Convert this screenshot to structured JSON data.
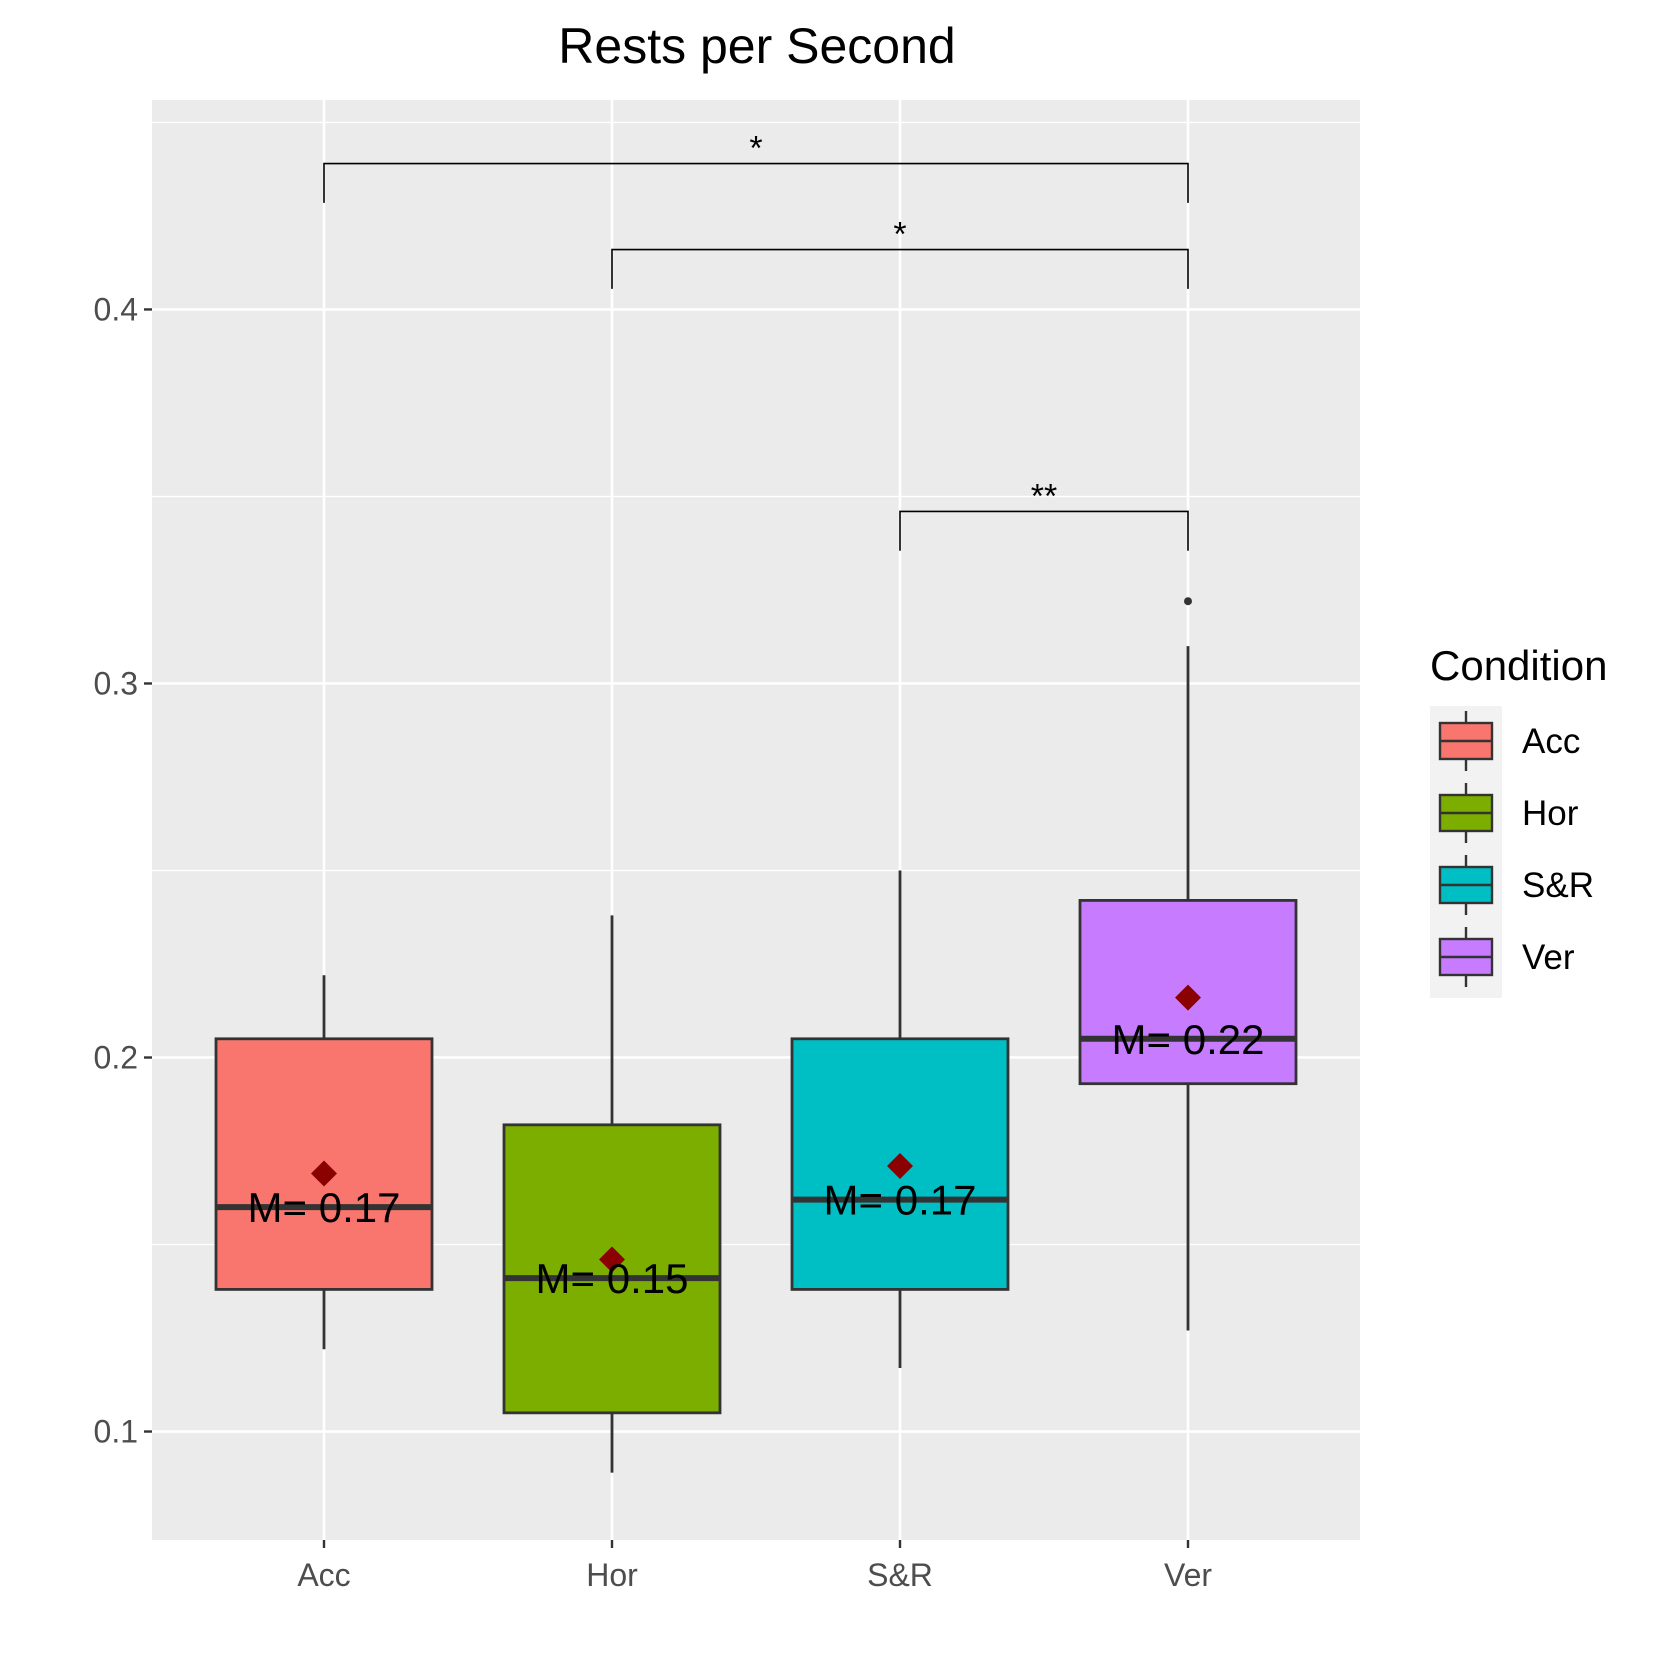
{
  "chart_data": {
    "type": "box",
    "title": "Rests per Second",
    "xlabel": "",
    "ylabel": "",
    "ylim": [
      0.071,
      0.456
    ],
    "y_ticks": [
      0.1,
      0.2,
      0.3,
      0.4
    ],
    "y_tick_labels": [
      "0.1",
      "0.2",
      "0.3",
      "0.4"
    ],
    "categories": [
      "Acc",
      "Hor",
      "S&R",
      "Ver"
    ],
    "boxes": [
      {
        "name": "Acc",
        "color": "#F8766D",
        "whisker_low": 0.122,
        "q1": 0.138,
        "median": 0.16,
        "q3": 0.205,
        "whisker_high": 0.222,
        "mean": 0.169,
        "mean_label": "M= 0.17",
        "outliers": []
      },
      {
        "name": "Hor",
        "color": "#7CAE00",
        "whisker_low": 0.089,
        "q1": 0.105,
        "median": 0.141,
        "q3": 0.182,
        "whisker_high": 0.238,
        "mean": 0.146,
        "mean_label": "M= 0.15",
        "outliers": []
      },
      {
        "name": "S&R",
        "color": "#00BFC4",
        "whisker_low": 0.117,
        "q1": 0.138,
        "median": 0.162,
        "q3": 0.205,
        "whisker_high": 0.25,
        "mean": 0.171,
        "mean_label": "M= 0.17",
        "outliers": []
      },
      {
        "name": "Ver",
        "color": "#C77CFF",
        "whisker_low": 0.127,
        "q1": 0.193,
        "median": 0.205,
        "q3": 0.242,
        "whisker_high": 0.31,
        "mean": 0.216,
        "mean_label": "M= 0.22",
        "outliers": [
          0.322
        ]
      }
    ],
    "significance": [
      {
        "from": "Acc",
        "to": "Ver",
        "y": 0.439,
        "tip_y": 0.4285,
        "label": "*"
      },
      {
        "from": "Hor",
        "to": "Ver",
        "y": 0.416,
        "tip_y": 0.4055,
        "label": "*"
      },
      {
        "from": "S&R",
        "to": "Ver",
        "y": 0.346,
        "tip_y": 0.3355,
        "label": "**"
      }
    ],
    "legend": {
      "title": "Condition",
      "position": "right",
      "items": [
        "Acc",
        "Hor",
        "S&R",
        "Ver"
      ]
    },
    "grid": true,
    "panel_background": "#EBEBEB",
    "mean_marker_color": "#8B0000"
  }
}
